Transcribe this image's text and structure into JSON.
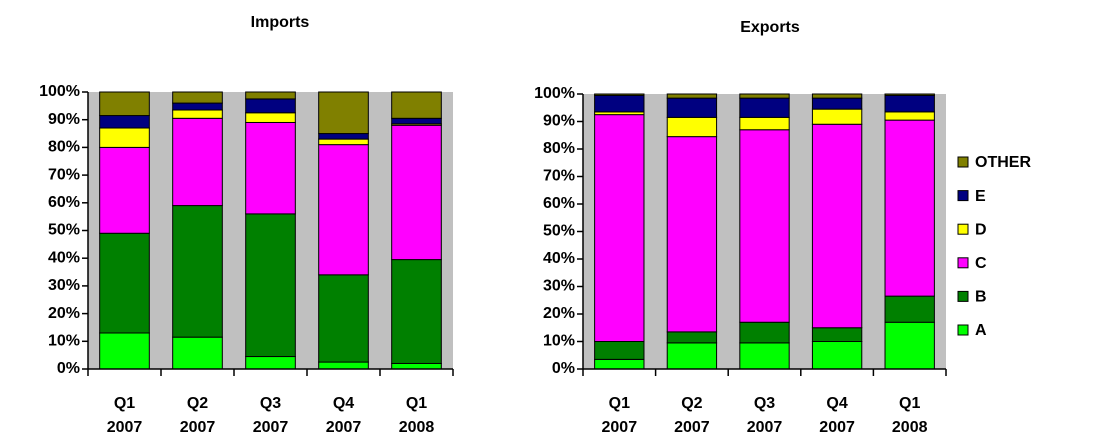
{
  "chart_data": [
    {
      "type": "stacked_bar",
      "title": "Imports",
      "categories": [
        "Q1 2007",
        "Q2 2007",
        "Q3 2007",
        "Q4 2007",
        "Q1 2008"
      ],
      "series": [
        {
          "name": "A",
          "color": "#00ff00",
          "values": [
            13,
            11.5,
            4.5,
            2.5,
            2
          ]
        },
        {
          "name": "B",
          "color": "#008000",
          "values": [
            36,
            47.5,
            51.5,
            31.5,
            37.5
          ]
        },
        {
          "name": "C",
          "color": "#ff00ff",
          "values": [
            31,
            31.5,
            33,
            47,
            48.5
          ]
        },
        {
          "name": "D",
          "color": "#ffff00",
          "values": [
            7,
            3,
            3.5,
            2,
            0.5
          ]
        },
        {
          "name": "E",
          "color": "#000080",
          "values": [
            4.5,
            2.5,
            5,
            2,
            2
          ]
        },
        {
          "name": "OTHER",
          "color": "#808000",
          "values": [
            8.5,
            4,
            2.5,
            15,
            9.5
          ]
        }
      ],
      "ylim": [
        0,
        100
      ],
      "yticks": [
        {
          "value": 0,
          "label": "0%"
        },
        {
          "value": 10,
          "label": "10%"
        },
        {
          "value": 20,
          "label": "20%"
        },
        {
          "value": 30,
          "label": "30%"
        },
        {
          "value": 40,
          "label": "40%"
        },
        {
          "value": 50,
          "label": "50%"
        },
        {
          "value": 60,
          "label": "60%"
        },
        {
          "value": 70,
          "label": "70%"
        },
        {
          "value": 80,
          "label": "80%"
        },
        {
          "value": 90,
          "label": "90%"
        },
        {
          "value": 100,
          "label": "100%"
        }
      ],
      "plot_background": "#c0c0c0",
      "legend": "none"
    },
    {
      "type": "stacked_bar",
      "title": "Exports",
      "categories": [
        "Q1 2007",
        "Q2 2007",
        "Q3 2007",
        "Q4 2007",
        "Q1 2008"
      ],
      "series": [
        {
          "name": "A",
          "color": "#00ff00",
          "values": [
            3.5,
            9.5,
            9.5,
            10,
            17
          ]
        },
        {
          "name": "B",
          "color": "#008000",
          "values": [
            6.5,
            4,
            7.5,
            5,
            9.5
          ]
        },
        {
          "name": "C",
          "color": "#ff00ff",
          "values": [
            82.5,
            71,
            70,
            74,
            64
          ]
        },
        {
          "name": "D",
          "color": "#ffff00",
          "values": [
            1,
            7,
            4.5,
            5.5,
            3
          ]
        },
        {
          "name": "E",
          "color": "#000080",
          "values": [
            6,
            7,
            7,
            4,
            6
          ]
        },
        {
          "name": "OTHER",
          "color": "#808000",
          "values": [
            0.5,
            1.5,
            1.5,
            1.5,
            0.5
          ]
        }
      ],
      "ylim": [
        0,
        100
      ],
      "yticks": [
        {
          "value": 0,
          "label": "0%"
        },
        {
          "value": 10,
          "label": "10%"
        },
        {
          "value": 20,
          "label": "20%"
        },
        {
          "value": 30,
          "label": "30%"
        },
        {
          "value": 40,
          "label": "40%"
        },
        {
          "value": 50,
          "label": "50%"
        },
        {
          "value": 60,
          "label": "60%"
        },
        {
          "value": 70,
          "label": "70%"
        },
        {
          "value": 80,
          "label": "80%"
        },
        {
          "value": 90,
          "label": "90%"
        },
        {
          "value": 100,
          "label": "100%"
        }
      ],
      "plot_background": "#c0c0c0",
      "legend": "right"
    }
  ]
}
